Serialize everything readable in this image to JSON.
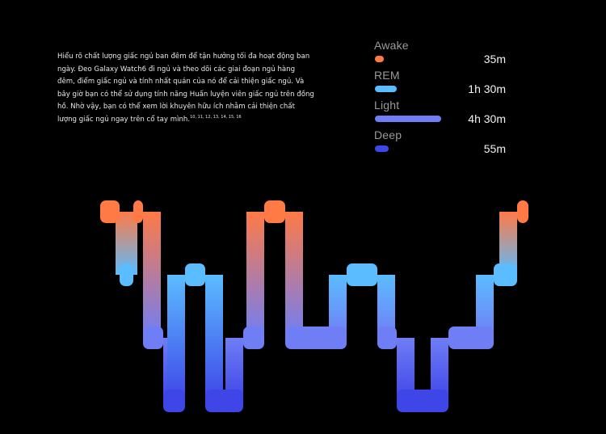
{
  "description": {
    "text": "Hiểu rõ chất lượng giấc ngủ ban đêm để tận hưởng tối đa hoạt động ban ngày. Đeo Galaxy Watch6 đi ngủ và theo dõi các giai đoạn ngủ hàng đêm, điểm giấc ngủ và tính nhất quán của nó để cải thiện giấc ngủ. Và bây giờ bạn có thể sử dụng tính năng Huấn luyện viên giấc ngủ trên đồng hồ. Nhờ vậy, bạn có thể xem lời khuyên hữu ích nhằm cải thiện chất lượng giấc ngủ ngay trên cổ tay mình.",
    "footnote": "10, 11, 12, 13, 14, 15, 16"
  },
  "legend": [
    {
      "name": "Awake",
      "duration": "35m",
      "minutes": 35,
      "color": "#ff7a45"
    },
    {
      "name": "REM",
      "duration": "1h 30m",
      "minutes": 90,
      "color": "#5bbcff"
    },
    {
      "name": "Light",
      "duration": "4h 30m",
      "minutes": 270,
      "color": "#6f7ef5"
    },
    {
      "name": "Deep",
      "duration": "55m",
      "minutes": 55,
      "color": "#3f46e8"
    }
  ],
  "chart_data": {
    "type": "area",
    "title": "",
    "stages": [
      "Awake",
      "REM",
      "Light",
      "Deep"
    ],
    "segments": [
      {
        "stage": "Awake",
        "start": 0,
        "end": 24
      },
      {
        "stage": "REM",
        "start": 24,
        "end": 41
      },
      {
        "stage": "Awake",
        "start": 41,
        "end": 53
      },
      {
        "stage": "Light",
        "start": 53,
        "end": 78
      },
      {
        "stage": "Deep",
        "start": 78,
        "end": 105
      },
      {
        "stage": "REM",
        "start": 105,
        "end": 130
      },
      {
        "stage": "Deep",
        "start": 130,
        "end": 177
      },
      {
        "stage": "Light",
        "start": 177,
        "end": 203
      },
      {
        "stage": "Awake",
        "start": 203,
        "end": 229
      },
      {
        "stage": "Light",
        "start": 229,
        "end": 305
      },
      {
        "stage": "REM",
        "start": 305,
        "end": 343
      },
      {
        "stage": "Light",
        "start": 343,
        "end": 367
      },
      {
        "stage": "Deep",
        "start": 367,
        "end": 431
      },
      {
        "stage": "Light",
        "start": 431,
        "end": 487
      },
      {
        "stage": "REM",
        "start": 487,
        "end": 516
      },
      {
        "stage": "Awake",
        "start": 516,
        "end": 530
      }
    ]
  }
}
